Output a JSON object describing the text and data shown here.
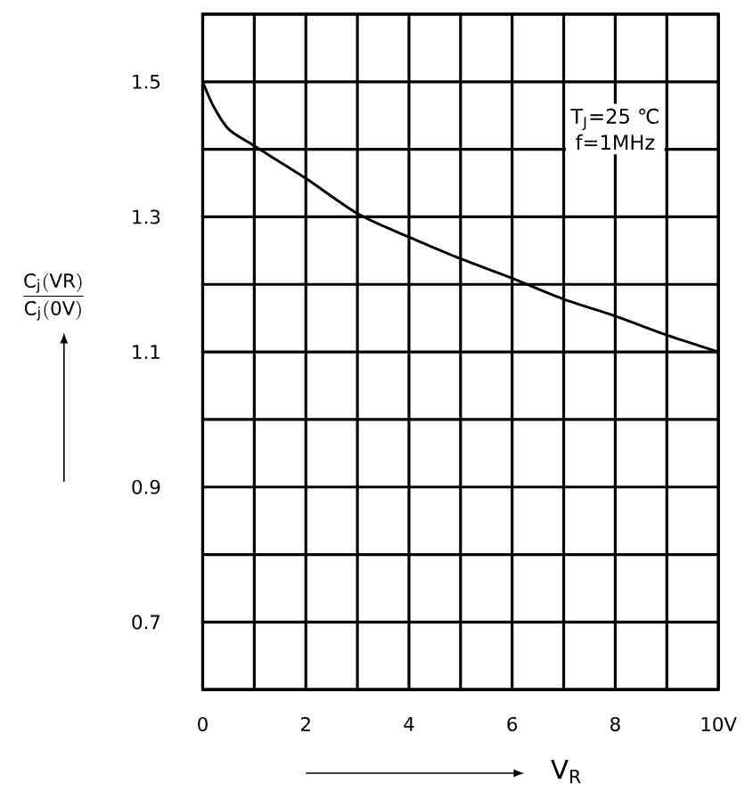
{
  "chart_data": {
    "type": "line",
    "x": [
      0,
      0.2,
      0.5,
      1,
      2,
      3,
      4,
      5,
      6,
      7,
      8,
      9,
      10
    ],
    "values": [
      1.5,
      1.465,
      1.43,
      1.405,
      1.357,
      1.305,
      1.27,
      1.238,
      1.209,
      1.178,
      1.153,
      1.125,
      1.1
    ],
    "color": "#000000",
    "xlabel": "V$_{R}$",
    "ylabel": "\\frac{\\mathrm{C_{j}(VR)}}{\\mathrm{C_{j}(0V)}}",
    "annotations": [
      "T$_{J}$=25 ℃",
      "f=1MHz"
    ],
    "xlim": [
      0,
      10
    ],
    "ylim": [
      0.6,
      1.6
    ],
    "xticks": [
      0,
      {
        "value": 1,
        "label": null
      },
      2,
      {
        "value": 3,
        "label": null
      },
      4,
      {
        "value": 5,
        "label": null
      },
      6,
      {
        "value": 7,
        "label": null
      },
      8,
      {
        "value": 9,
        "label": null
      },
      {
        "value": 10,
        "label": "10V"
      }
    ],
    "yticks": [
      {
        "value": 0.6,
        "label": null
      },
      0.7,
      {
        "value": 0.8,
        "label": null
      },
      0.9,
      {
        "value": 1.0,
        "label": null
      },
      1.1,
      {
        "value": 1.2,
        "label": null
      },
      1.3,
      {
        "value": 1.4,
        "label": null
      },
      1.5,
      {
        "value": 1.6,
        "label": null
      }
    ],
    "grid": true,
    "marker": "none",
    "line_style": "solid"
  }
}
